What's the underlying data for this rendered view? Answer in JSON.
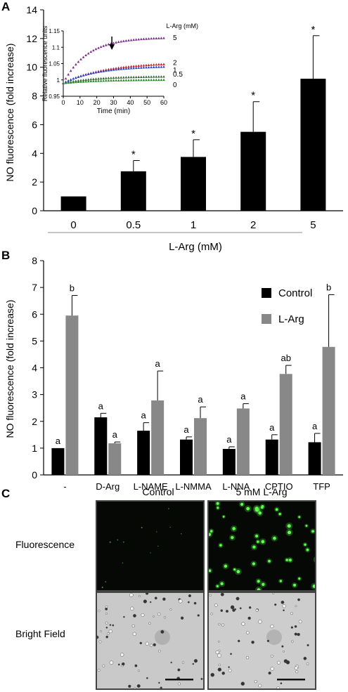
{
  "panels": {
    "a": "A",
    "b": "B",
    "c": "C"
  },
  "panel_a": {
    "ylabel": "NO fluorescence (fold increase)",
    "xlabel": "L-Arg (mM)"
  },
  "panel_b": {
    "ylabel": "NO fluorescence (fold increase)"
  },
  "panel_c": {
    "col_labels": [
      "Control",
      "5 mM L-Arg"
    ],
    "row_labels": [
      "Fluorescence",
      "Bright Field"
    ]
  },
  "chart_data": [
    {
      "id": "A-main",
      "type": "bar",
      "title": "",
      "xlabel": "L-Arg (mM)",
      "ylabel": "NO fluorescence (fold increase)",
      "ylim": [
        0,
        14
      ],
      "yticks": [
        0,
        2,
        4,
        6,
        8,
        10,
        12,
        14
      ],
      "categories": [
        "0",
        "0.5",
        "1",
        "2",
        "5"
      ],
      "values": [
        1.0,
        2.75,
        3.75,
        5.5,
        9.2
      ],
      "errors": [
        0,
        0.75,
        1.2,
        2.1,
        3.0
      ],
      "annotations": [
        "",
        "*",
        "*",
        "*",
        "*"
      ],
      "bar_color": "#000000",
      "grid": false,
      "legend": "none"
    },
    {
      "id": "A-inset",
      "type": "scatter",
      "title": "",
      "xlabel": "Time (min)",
      "ylabel": "Relative fluorescence units",
      "xlim": [
        0,
        60
      ],
      "ylim": [
        0.95,
        1.15
      ],
      "xticks": [
        0,
        10,
        20,
        30,
        40,
        50,
        60
      ],
      "yticks": [
        "0.95",
        "1",
        "1.05",
        "1.1",
        "1.15"
      ],
      "legend_title": "L-Arg (mM)",
      "arrow_at_time": 29,
      "series": [
        {
          "name": "5",
          "color": "#7a2a8a",
          "end": 1.128,
          "k": 0.07
        },
        {
          "name": "2",
          "color": "#cc2222",
          "end": 1.048,
          "k": 0.04
        },
        {
          "name": "1",
          "color": "#2244cc",
          "end": 1.04,
          "k": 0.05
        },
        {
          "name": "0.5",
          "color": "#336633",
          "end": 1.01,
          "k": 0.05
        },
        {
          "name": "0",
          "color": "#228822",
          "end": 1.0,
          "k": 0.05
        }
      ],
      "start": 0.99,
      "grid": false
    },
    {
      "id": "B",
      "type": "bar",
      "title": "",
      "xlabel": "",
      "ylabel": "NO fluorescence (fold increase)",
      "ylim": [
        0,
        8
      ],
      "yticks": [
        0,
        1,
        2,
        3,
        4,
        5,
        6,
        7,
        8
      ],
      "categories": [
        "-",
        "D-Arg",
        "L-NAME",
        "L-NMMA",
        "L-NNA",
        "CPTIO",
        "TFP"
      ],
      "series": [
        {
          "name": "Control",
          "color": "#000000",
          "values": [
            1.0,
            2.15,
            1.65,
            1.32,
            0.97,
            1.32,
            1.22
          ],
          "errors": [
            0,
            0.15,
            0.3,
            0.1,
            0.08,
            0.18,
            0.33
          ],
          "letters": [
            "a",
            "a",
            "a",
            "a",
            "a",
            "a",
            "a"
          ]
        },
        {
          "name": "L-Arg",
          "color": "#888888",
          "values": [
            5.95,
            1.18,
            2.78,
            2.12,
            2.48,
            3.77,
            4.78
          ],
          "errors": [
            0.75,
            0.05,
            1.1,
            0.42,
            0.18,
            0.32,
            1.95
          ],
          "letters": [
            "b",
            "a",
            "a",
            "a",
            "a",
            "ab",
            "b"
          ]
        }
      ],
      "grid": false,
      "legend": "top-right"
    }
  ]
}
